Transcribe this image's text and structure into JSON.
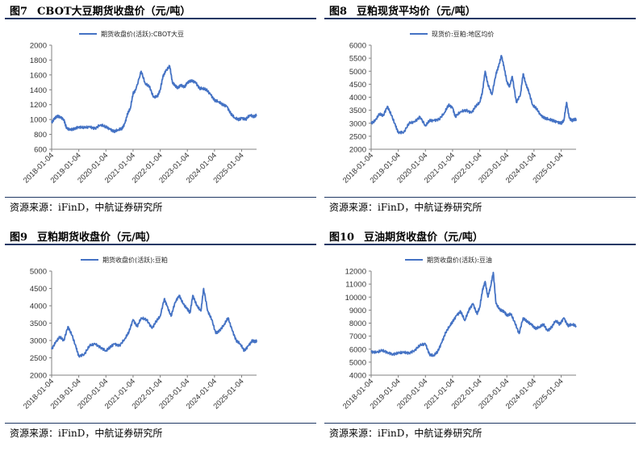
{
  "panels": [
    {
      "figure": "图7",
      "title": "CBOT大豆期货收盘价（元/吨）",
      "source": "资源来源：iFinD，中航证券研究所"
    },
    {
      "figure": "图8",
      "title": "豆粕现货平均价（元/吨）",
      "source": "资源来源：iFinD，中航证券研究所"
    },
    {
      "figure": "图9",
      "title": "豆粕期货收盘价（元/吨）",
      "source": "资源来源：iFinD，中航证券研究所"
    },
    {
      "figure": "图10",
      "title": "豆油期货收盘价（元/吨）",
      "source": "资源来源：iFinD，中航证券研究所"
    }
  ],
  "colors": {
    "series": "#4472c4",
    "rule": "#1f3864",
    "axis": "#808080"
  },
  "chart_data": [
    {
      "type": "line",
      "x_ticks": [
        "2018-01-04",
        "2019-01-04",
        "2020-01-04",
        "2021-01-04",
        "2022-01-04",
        "2023-01-04",
        "2024-01-04",
        "2025-01-04"
      ],
      "y_ticks": [
        600,
        800,
        1000,
        1200,
        1400,
        1600,
        1800,
        2000
      ],
      "ylim": [
        600,
        2000
      ],
      "xlim": [
        2018.0,
        2025.55
      ],
      "series": [
        {
          "name": "期货收盘价(活跃):CBOT大豆",
          "x": [
            2018.0,
            2018.1,
            2018.2,
            2018.3,
            2018.45,
            2018.55,
            2018.7,
            2018.85,
            2019.0,
            2019.2,
            2019.4,
            2019.6,
            2019.8,
            2020.0,
            2020.15,
            2020.3,
            2020.45,
            2020.6,
            2020.7,
            2020.8,
            2020.9,
            2021.0,
            2021.1,
            2021.3,
            2021.45,
            2021.6,
            2021.75,
            2021.9,
            2022.0,
            2022.1,
            2022.2,
            2022.35,
            2022.45,
            2022.55,
            2022.65,
            2022.75,
            2022.9,
            2023.0,
            2023.15,
            2023.3,
            2023.45,
            2023.55,
            2023.7,
            2023.85,
            2024.0,
            2024.15,
            2024.3,
            2024.45,
            2024.6,
            2024.75,
            2024.9,
            2025.0,
            2025.15,
            2025.3,
            2025.45,
            2025.55
          ],
          "values": [
            960,
            1010,
            1040,
            1040,
            1000,
            880,
            860,
            880,
            900,
            890,
            900,
            880,
            930,
            900,
            870,
            840,
            860,
            880,
            950,
            1080,
            1150,
            1350,
            1400,
            1650,
            1480,
            1450,
            1300,
            1310,
            1400,
            1580,
            1650,
            1720,
            1500,
            1460,
            1420,
            1460,
            1440,
            1500,
            1520,
            1500,
            1420,
            1420,
            1400,
            1340,
            1260,
            1240,
            1200,
            1180,
            1080,
            1020,
            1000,
            1020,
            1000,
            1060,
            1040,
            1060
          ]
        }
      ]
    },
    {
      "type": "line",
      "x_ticks": [
        "2018-01-04",
        "2019-01-04",
        "2020-01-04",
        "2021-01-04",
        "2022-01-04",
        "2023-01-04",
        "2024-01-04",
        "2025-01-04"
      ],
      "y_ticks": [
        2000,
        2500,
        3000,
        3500,
        4000,
        4500,
        5000,
        5500,
        6000
      ],
      "ylim": [
        2000,
        6000
      ],
      "xlim": [
        2018.0,
        2025.55
      ],
      "series": [
        {
          "name": "现货价:豆粕:地区均价",
          "x": [
            2018.0,
            2018.15,
            2018.3,
            2018.45,
            2018.6,
            2018.75,
            2018.9,
            2019.0,
            2019.2,
            2019.4,
            2019.6,
            2019.8,
            2020.0,
            2020.15,
            2020.3,
            2020.5,
            2020.7,
            2020.85,
            2021.0,
            2021.1,
            2021.3,
            2021.5,
            2021.7,
            2021.85,
            2022.0,
            2022.1,
            2022.2,
            2022.3,
            2022.45,
            2022.6,
            2022.7,
            2022.8,
            2022.9,
            2023.0,
            2023.1,
            2023.2,
            2023.35,
            2023.5,
            2023.6,
            2023.7,
            2023.8,
            2023.95,
            2024.1,
            2024.25,
            2024.4,
            2024.55,
            2024.7,
            2024.85,
            2025.0,
            2025.1,
            2025.2,
            2025.3,
            2025.4,
            2025.5,
            2025.55
          ],
          "values": [
            3000,
            3100,
            3350,
            3300,
            3650,
            3300,
            2900,
            2650,
            2650,
            3000,
            3050,
            3250,
            2900,
            3100,
            3100,
            3150,
            3400,
            3700,
            3600,
            3250,
            3450,
            3500,
            3400,
            3650,
            3800,
            4200,
            5000,
            4500,
            4100,
            4900,
            5200,
            5600,
            5150,
            4600,
            4400,
            4800,
            3800,
            4100,
            4900,
            4500,
            4250,
            3700,
            3550,
            3300,
            3200,
            3150,
            3100,
            3050,
            3000,
            3100,
            3800,
            3200,
            3100,
            3150,
            3150
          ]
        }
      ]
    },
    {
      "type": "line",
      "x_ticks": [
        "2018-01-04",
        "2019-01-04",
        "2020-01-04",
        "2021-01-04",
        "2022-01-04",
        "2023-01-04",
        "2024-01-04",
        "2025-01-04"
      ],
      "y_ticks": [
        2000,
        2500,
        3000,
        3500,
        4000,
        4500,
        5000
      ],
      "ylim": [
        2000,
        5000
      ],
      "xlim": [
        2018.0,
        2025.55
      ],
      "series": [
        {
          "name": "期货收盘价(活跃):豆粕",
          "x": [
            2018.0,
            2018.15,
            2018.3,
            2018.45,
            2018.6,
            2018.75,
            2018.9,
            2019.0,
            2019.2,
            2019.4,
            2019.6,
            2019.8,
            2020.0,
            2020.15,
            2020.3,
            2020.5,
            2020.7,
            2020.85,
            2021.0,
            2021.15,
            2021.3,
            2021.5,
            2021.7,
            2021.85,
            2022.0,
            2022.15,
            2022.25,
            2022.4,
            2022.55,
            2022.7,
            2022.85,
            2023.0,
            2023.1,
            2023.2,
            2023.35,
            2023.5,
            2023.6,
            2023.75,
            2023.9,
            2024.05,
            2024.2,
            2024.35,
            2024.5,
            2024.65,
            2024.8,
            2024.95,
            2025.1,
            2025.25,
            2025.4,
            2025.5,
            2025.55
          ],
          "values": [
            2750,
            2950,
            3100,
            3000,
            3400,
            3150,
            2800,
            2550,
            2600,
            2850,
            2900,
            2800,
            2700,
            2800,
            2900,
            2850,
            3050,
            3250,
            3600,
            3400,
            3650,
            3600,
            3350,
            3550,
            3700,
            4200,
            4000,
            3700,
            4100,
            4300,
            4050,
            3900,
            3800,
            4300,
            4000,
            3850,
            4500,
            3850,
            3600,
            3200,
            3300,
            3450,
            3650,
            3300,
            3000,
            2900,
            2700,
            2850,
            3000,
            2950,
            3000
          ]
        }
      ]
    },
    {
      "type": "line",
      "x_ticks": [
        "2018-01-04",
        "2019-01-04",
        "2020-01-04",
        "2021-01-04",
        "2022-01-04",
        "2023-01-04",
        "2024-01-04",
        "2025-01-04"
      ],
      "y_ticks": [
        4000,
        5000,
        6000,
        7000,
        8000,
        9000,
        10000,
        11000,
        12000
      ],
      "ylim": [
        4000,
        12000
      ],
      "xlim": [
        2018.0,
        2025.55
      ],
      "series": [
        {
          "name": "期货收盘价(活跃):豆油",
          "x": [
            2018.0,
            2018.2,
            2018.4,
            2018.6,
            2018.8,
            2019.0,
            2019.2,
            2019.4,
            2019.6,
            2019.8,
            2020.0,
            2020.15,
            2020.3,
            2020.45,
            2020.6,
            2020.75,
            2020.9,
            2021.0,
            2021.15,
            2021.3,
            2021.45,
            2021.6,
            2021.75,
            2021.9,
            2022.0,
            2022.1,
            2022.2,
            2022.3,
            2022.4,
            2022.5,
            2022.6,
            2022.75,
            2022.9,
            2023.0,
            2023.15,
            2023.3,
            2023.45,
            2023.6,
            2023.75,
            2023.9,
            2024.05,
            2024.2,
            2024.35,
            2024.5,
            2024.65,
            2024.8,
            2024.95,
            2025.1,
            2025.25,
            2025.4,
            2025.55
          ],
          "values": [
            5800,
            5750,
            5900,
            5750,
            5600,
            5700,
            5750,
            5700,
            5900,
            6300,
            6400,
            5600,
            5500,
            5800,
            6500,
            7300,
            7800,
            8100,
            8600,
            8900,
            8200,
            9000,
            9500,
            8700,
            9200,
            10500,
            11200,
            10000,
            10800,
            11900,
            9500,
            9000,
            8900,
            8600,
            8700,
            8000,
            7200,
            8400,
            8100,
            7900,
            7600,
            7700,
            7900,
            7400,
            7700,
            8200,
            7900,
            8400,
            7800,
            7900,
            7800
          ]
        }
      ]
    }
  ]
}
